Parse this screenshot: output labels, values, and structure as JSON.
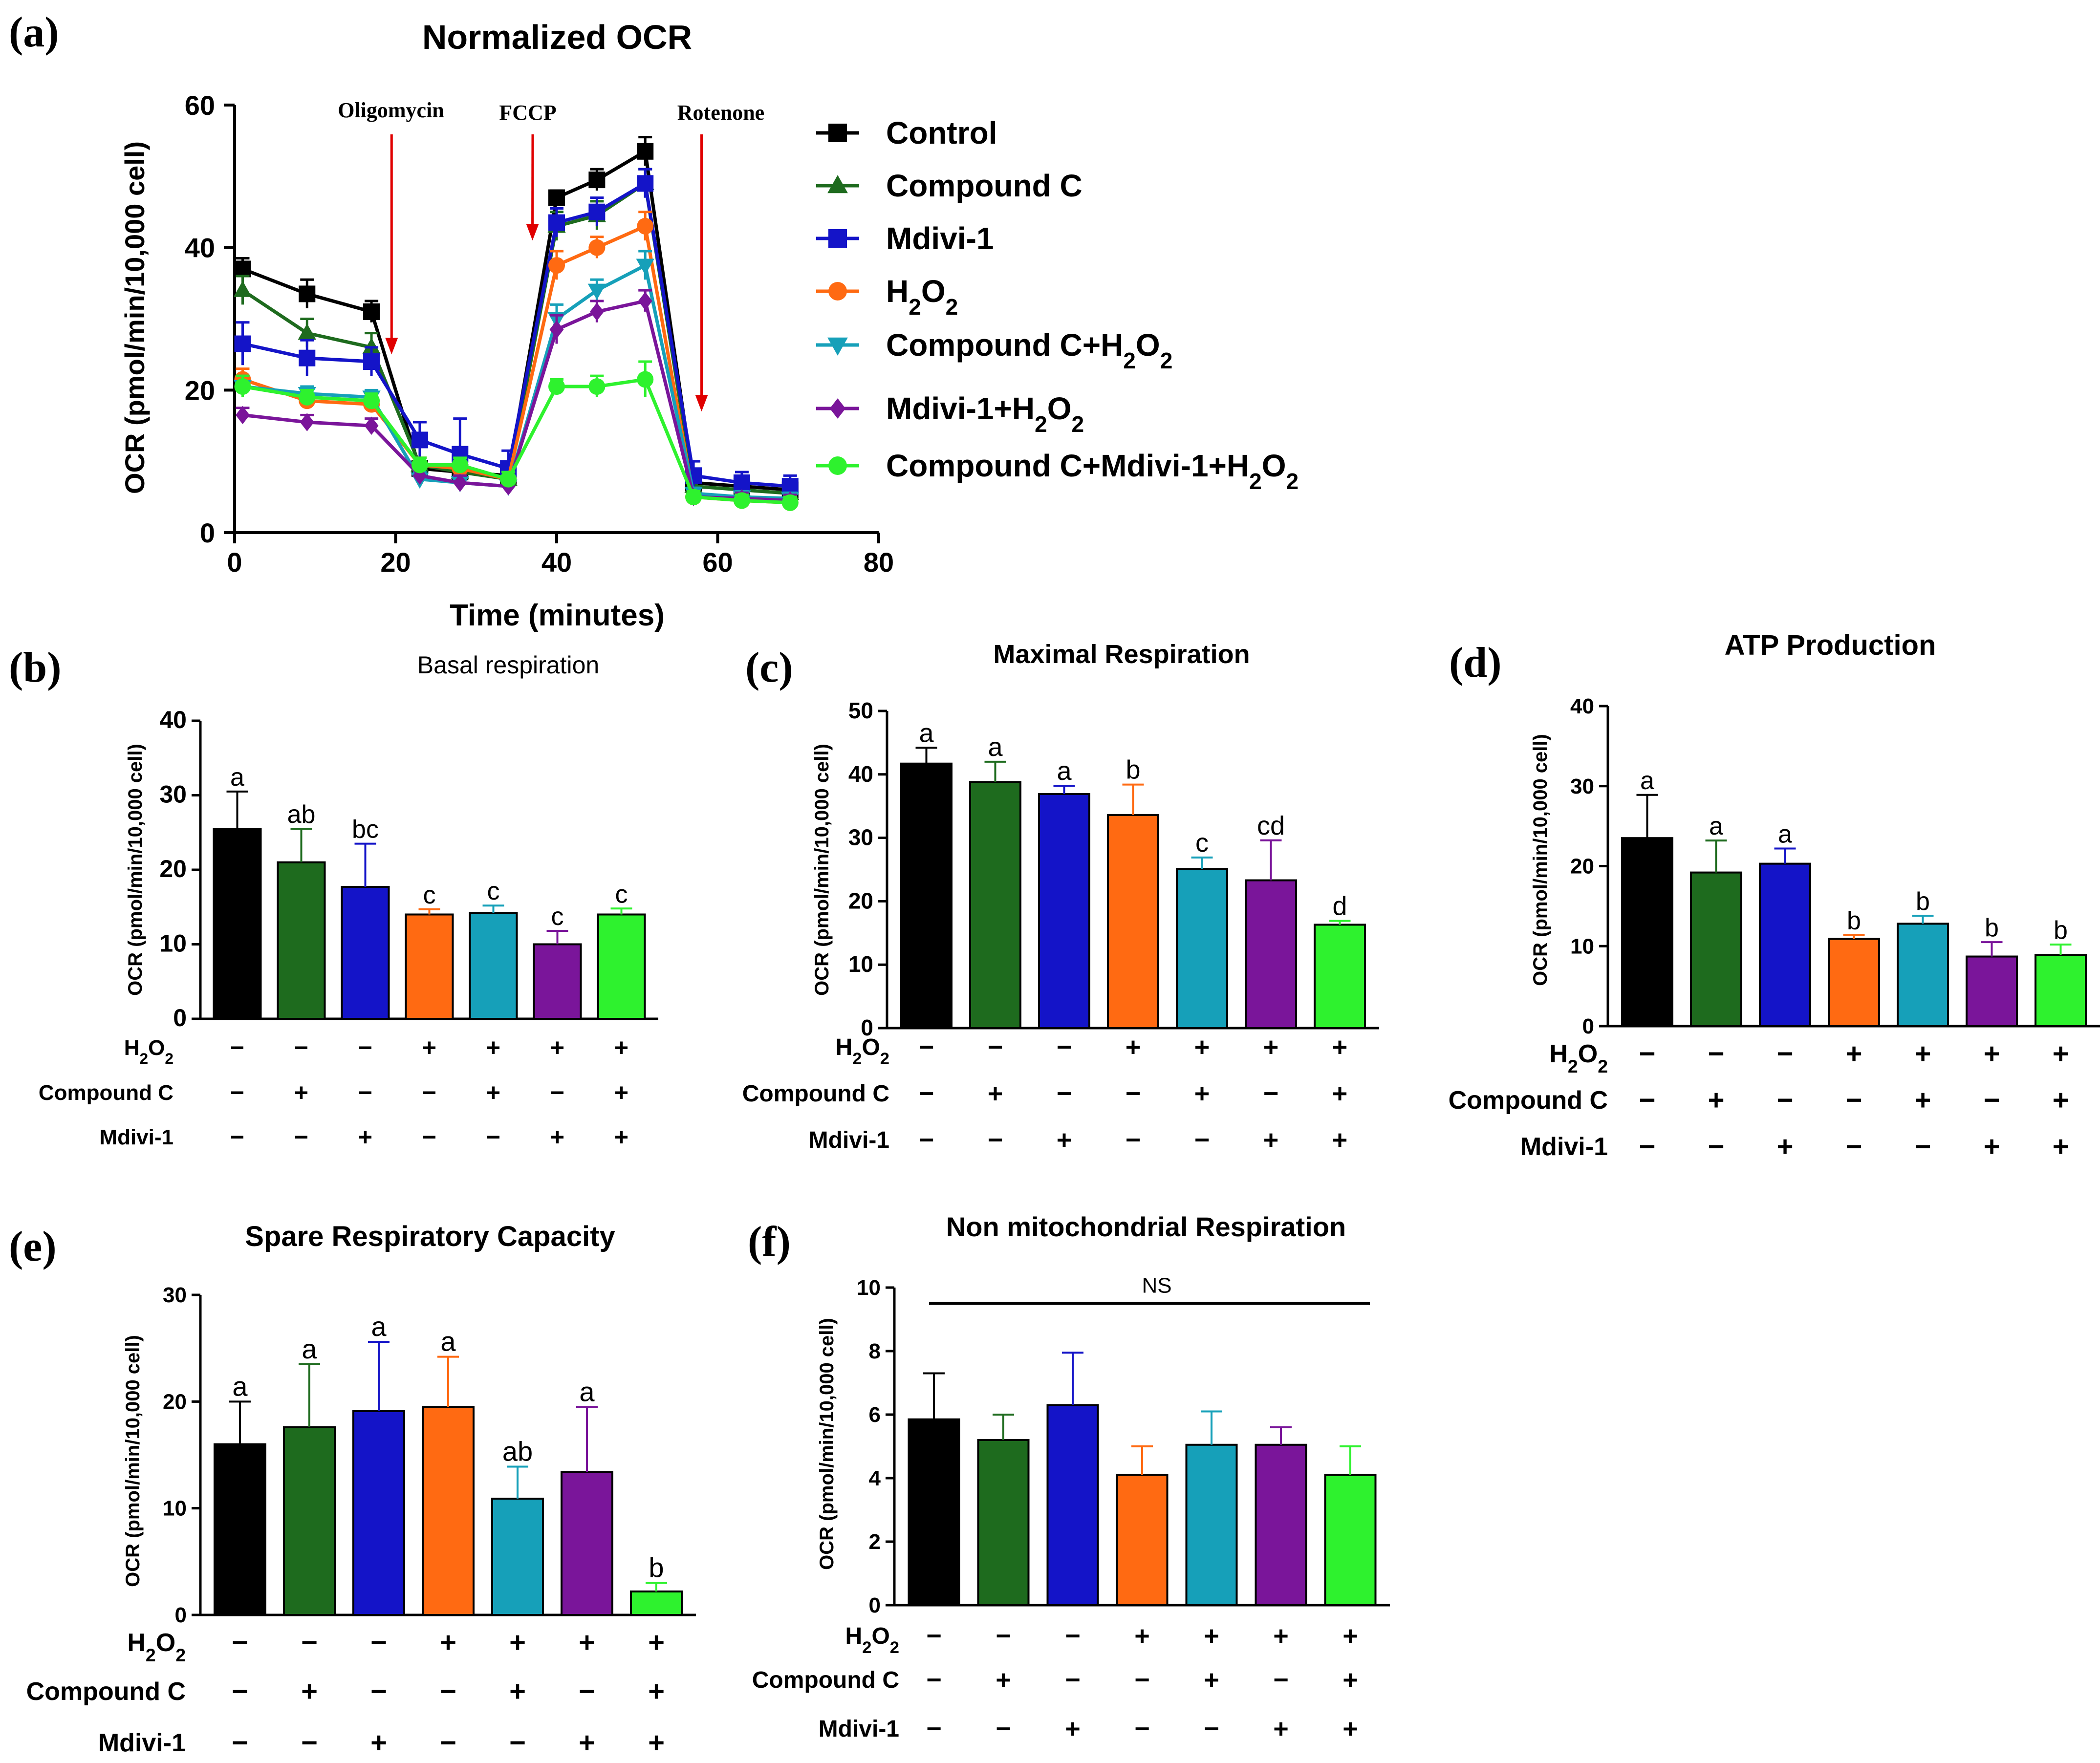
{
  "panel_labels": [
    "(a)",
    "(b)",
    "(c)",
    "(d)",
    "(e)",
    "(f)"
  ],
  "colors": {
    "Control": "#000000",
    "Compound C": "#1e6b1e",
    "Mdivi-1": "#1414c8",
    "H2O2": "#ff6a12",
    "Compound C+H2O2": "#16a0b9",
    "Mdivi-1+H2O2": "#7a159a",
    "Compound C+Mdivi-1+H2O2": "#2ef22e",
    "arrow": "#e00000"
  },
  "chart_data": [
    {
      "id": "a",
      "type": "line",
      "title": "Normalized OCR",
      "xlabel": "Time (minutes)",
      "ylabel": "OCR (pmol/min/10,000 cell)",
      "xlim": [
        0,
        80
      ],
      "ylim": [
        0,
        60
      ],
      "xticks": [
        0,
        20,
        40,
        60,
        80
      ],
      "yticks": [
        0,
        20,
        40,
        60
      ],
      "x": [
        1,
        9,
        17,
        23,
        28,
        34,
        40,
        45,
        51,
        57,
        63,
        69
      ],
      "annotations": [
        {
          "label": "Oligomycin",
          "x": 19.5
        },
        {
          "label": "FCCP",
          "x": 37
        },
        {
          "label": "Rotenone",
          "x": 58
        }
      ],
      "series": [
        {
          "name": "Control",
          "marker": "square",
          "values": [
            37,
            33.5,
            31,
            9,
            8.5,
            8,
            47,
            49.5,
            53.5,
            7,
            6.5,
            6
          ],
          "errors": [
            1.5,
            2,
            1.5,
            1,
            1,
            1,
            1,
            1.5,
            2,
            1,
            0.8,
            0.8
          ]
        },
        {
          "name": "Compound C",
          "marker": "triangle-up",
          "values": [
            34,
            28,
            26,
            9.5,
            8.5,
            7.5,
            43,
            44.5,
            49,
            6.5,
            6,
            5.5
          ],
          "errors": [
            2,
            2,
            2,
            1,
            1,
            1,
            2,
            2,
            2,
            1,
            0.8,
            0.8
          ]
        },
        {
          "name": "Mdivi-1",
          "marker": "square",
          "values": [
            26.5,
            24.5,
            24,
            13,
            11,
            9,
            43.5,
            45,
            49,
            8,
            7,
            6.5
          ],
          "errors": [
            3,
            2.5,
            2,
            2.5,
            5,
            2.5,
            2,
            2,
            2,
            2,
            1.5,
            1.5
          ]
        },
        {
          "name": "H2O2",
          "marker": "circle",
          "values": [
            21.5,
            18.5,
            18,
            9.5,
            9,
            7.5,
            37.5,
            40,
            43,
            5,
            4.5,
            4.2
          ],
          "errors": [
            1.5,
            1,
            1,
            1,
            1,
            1,
            2,
            1.5,
            2,
            0.8,
            0.8,
            0.8
          ]
        },
        {
          "name": "Compound C+H2O2",
          "marker": "triangle-down",
          "values": [
            20.5,
            19.5,
            19,
            7.5,
            7,
            6.5,
            30,
            34,
            37.5,
            5.5,
            5,
            4.8
          ],
          "errors": [
            1.5,
            1,
            1,
            1,
            1,
            1,
            2,
            1.5,
            2,
            0.8,
            0.8,
            0.8
          ]
        },
        {
          "name": "Mdivi-1+H2O2",
          "marker": "diamond",
          "values": [
            16.5,
            15.5,
            15,
            8,
            7,
            6.5,
            28.5,
            31,
            32.5,
            5,
            4.8,
            4.5
          ],
          "errors": [
            1,
            1,
            1,
            1,
            1,
            1,
            2,
            1.5,
            1.5,
            0.8,
            0.8,
            0.8
          ]
        },
        {
          "name": "Compound C+Mdivi-1+H2O2",
          "marker": "circle",
          "values": [
            20.5,
            19,
            18.5,
            9.5,
            9.5,
            7.5,
            20.5,
            20.5,
            21.5,
            5,
            4.5,
            4.2
          ],
          "errors": [
            1.5,
            1,
            1,
            1,
            1,
            1,
            1,
            1.5,
            2.5,
            0.8,
            0.8,
            0.8
          ]
        }
      ]
    },
    {
      "id": "b",
      "type": "bar",
      "title": "Basal respiration",
      "ylabel": "OCR (pmol/min/10,000 cell)",
      "ylim": [
        0,
        40
      ],
      "yticks": [
        0,
        10,
        20,
        30,
        40
      ],
      "categories": [
        "Control",
        "Compound C",
        "Mdivi-1",
        "H2O2",
        "Compound C+H2O2",
        "Mdivi-1+H2O2",
        "Compound C+Mdivi-1+H2O2"
      ],
      "values": [
        25.5,
        21,
        17.7,
        14,
        14.2,
        10,
        14
      ],
      "errors": [
        5,
        4.5,
        5.8,
        0.7,
        1,
        1.8,
        0.8
      ],
      "sig_labels": [
        "a",
        "ab",
        "bc",
        "c",
        "c",
        "c",
        "c"
      ],
      "treatments": [
        {
          "name": "H2O2",
          "signs": [
            "−",
            "−",
            "−",
            "+",
            "+",
            "+",
            "+"
          ]
        },
        {
          "name": "Compound C",
          "signs": [
            "−",
            "+",
            "−",
            "−",
            "+",
            "−",
            "+"
          ]
        },
        {
          "name": "Mdivi-1",
          "signs": [
            "−",
            "−",
            "+",
            "−",
            "−",
            "+",
            "+"
          ]
        }
      ]
    },
    {
      "id": "c",
      "type": "bar",
      "title": "Maximal Respiration",
      "ylabel": "OCR (pmol/min/10,000 cell)",
      "ylim": [
        0,
        50
      ],
      "yticks": [
        0,
        10,
        20,
        30,
        40,
        50
      ],
      "categories": [
        "Control",
        "Compound C",
        "Mdivi-1",
        "H2O2",
        "Compound C+H2O2",
        "Mdivi-1+H2O2",
        "Compound C+Mdivi-1+H2O2"
      ],
      "values": [
        41.7,
        38.8,
        36.9,
        33.6,
        25.1,
        23.3,
        16.3
      ],
      "errors": [
        2.5,
        3.2,
        1.3,
        4.8,
        1.8,
        6.3,
        0.6
      ],
      "sig_labels": [
        "a",
        "a",
        "a",
        "b",
        "c",
        "cd",
        "d"
      ],
      "treatments": [
        {
          "name": "H2O2",
          "signs": [
            "−",
            "−",
            "−",
            "+",
            "+",
            "+",
            "+"
          ]
        },
        {
          "name": "Compound C",
          "signs": [
            "−",
            "+",
            "−",
            "−",
            "+",
            "−",
            "+"
          ]
        },
        {
          "name": "Mdivi-1",
          "signs": [
            "−",
            "−",
            "+",
            "−",
            "−",
            "+",
            "+"
          ]
        }
      ]
    },
    {
      "id": "d",
      "type": "bar",
      "title": "ATP Production",
      "ylabel": "OCR (pmol/min/10,000 cell)",
      "ylim": [
        0,
        40
      ],
      "yticks": [
        0,
        10,
        20,
        30,
        40
      ],
      "categories": [
        "Control",
        "Compound C",
        "Mdivi-1",
        "H2O2",
        "Compound C+H2O2",
        "Mdivi-1+H2O2",
        "Compound C+Mdivi-1+H2O2"
      ],
      "values": [
        23.5,
        19.2,
        20.3,
        10.9,
        12.8,
        8.7,
        8.9
      ],
      "errors": [
        5.4,
        4,
        1.9,
        0.5,
        1,
        1.8,
        1.3
      ],
      "sig_labels": [
        "a",
        "a",
        "a",
        "b",
        "b",
        "b",
        "b"
      ],
      "treatments": [
        {
          "name": "H2O2",
          "signs": [
            "−",
            "−",
            "−",
            "+",
            "+",
            "+",
            "+"
          ]
        },
        {
          "name": "Compound C",
          "signs": [
            "−",
            "+",
            "−",
            "−",
            "+",
            "−",
            "+"
          ]
        },
        {
          "name": "Mdivi-1",
          "signs": [
            "−",
            "−",
            "+",
            "−",
            "−",
            "+",
            "+"
          ]
        }
      ]
    },
    {
      "id": "e",
      "type": "bar",
      "title": "Spare Respiratory Capacity",
      "ylabel": "OCR (pmol/min/10,000 cell)",
      "ylim": [
        0,
        30
      ],
      "yticks": [
        0,
        10,
        20,
        30
      ],
      "categories": [
        "Control",
        "Compound C",
        "Mdivi-1",
        "H2O2",
        "Compound C+H2O2",
        "Mdivi-1+H2O2",
        "Compound C+Mdivi-1+H2O2"
      ],
      "values": [
        16,
        17.6,
        19.1,
        19.5,
        10.9,
        13.4,
        2.2
      ],
      "errors": [
        4,
        5.9,
        6.5,
        4.7,
        3,
        6.1,
        0.8
      ],
      "sig_labels": [
        "a",
        "a",
        "a",
        "a",
        "ab",
        "a",
        "b"
      ],
      "treatments": [
        {
          "name": "H2O2",
          "signs": [
            "−",
            "−",
            "−",
            "+",
            "+",
            "+",
            "+"
          ]
        },
        {
          "name": "Compound C",
          "signs": [
            "−",
            "+",
            "−",
            "−",
            "+",
            "−",
            "+"
          ]
        },
        {
          "name": "Mdivi-1",
          "signs": [
            "−",
            "−",
            "+",
            "−",
            "−",
            "+",
            "+"
          ]
        }
      ]
    },
    {
      "id": "f",
      "type": "bar",
      "title": "Non mitochondrial Respiration",
      "ylabel": "OCR (pmol/min/10,000 cell)",
      "ylim": [
        0,
        10
      ],
      "yticks": [
        0,
        2,
        4,
        6,
        8,
        10
      ],
      "categories": [
        "Control",
        "Compound C",
        "Mdivi-1",
        "H2O2",
        "Compound C+H2O2",
        "Mdivi-1+H2O2",
        "Compound C+Mdivi-1+H2O2"
      ],
      "values": [
        5.85,
        5.2,
        6.3,
        4.1,
        5.05,
        5.05,
        4.1
      ],
      "errors": [
        1.45,
        0.8,
        1.65,
        0.9,
        1.05,
        0.55,
        0.9
      ],
      "sig_labels": [
        "",
        "",
        "",
        "",
        "",
        "",
        ""
      ],
      "significance_line": {
        "label": "NS",
        "y": 9.5
      },
      "treatments": [
        {
          "name": "H2O2",
          "signs": [
            "−",
            "−",
            "−",
            "+",
            "+",
            "+",
            "+"
          ]
        },
        {
          "name": "Compound C",
          "signs": [
            "−",
            "+",
            "−",
            "−",
            "+",
            "−",
            "+"
          ]
        },
        {
          "name": "Mdivi-1",
          "signs": [
            "−",
            "−",
            "+",
            "−",
            "−",
            "+",
            "+"
          ]
        }
      ]
    }
  ]
}
